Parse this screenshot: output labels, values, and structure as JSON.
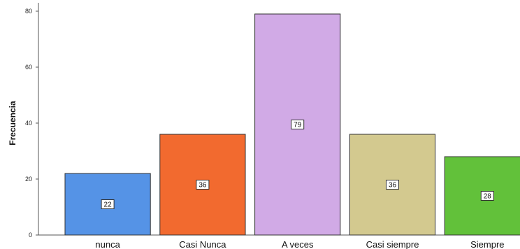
{
  "chart_data": {
    "type": "bar",
    "title": "",
    "xlabel": "",
    "ylabel": "Frecuencia",
    "categories": [
      "nunca",
      "Casi Nunca",
      "A veces",
      "Casi siempre",
      "Siempre"
    ],
    "values": [
      22,
      36,
      79,
      36,
      28
    ],
    "data_labels": [
      "22",
      "36",
      "79",
      "36",
      "28"
    ],
    "colors": [
      "#5593e6",
      "#f26a2f",
      "#d1aae6",
      "#d3c98f",
      "#62c13a"
    ],
    "ylim": [
      0,
      83
    ],
    "yticks": [
      0,
      20,
      40,
      60,
      80
    ],
    "grid": false,
    "legend": "none"
  }
}
